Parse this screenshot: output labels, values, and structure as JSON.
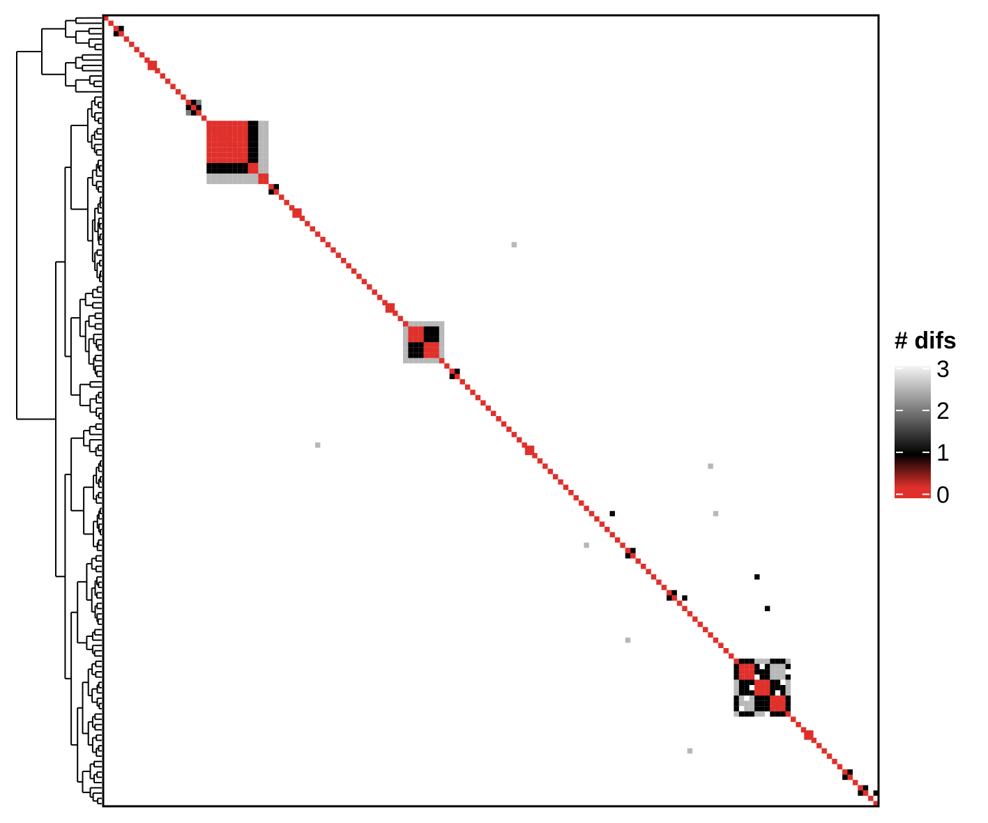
{
  "chart_data": {
    "type": "heatmap",
    "title": "",
    "xlabel": "",
    "ylabel": "",
    "n": 150,
    "diagonal_value": 0,
    "background_value": null,
    "legend": {
      "title": "# difs",
      "ticks": [
        {
          "label": "3",
          "value": 3
        },
        {
          "label": "2",
          "value": 2
        },
        {
          "label": "1",
          "value": 1
        },
        {
          "label": "0",
          "value": 0
        }
      ],
      "range": [
        0,
        3
      ],
      "colors": [
        "#e0302b",
        "#000000",
        "#f5f5f5"
      ]
    },
    "blocks": [
      {
        "start": 2,
        "end": 3,
        "pattern": [
          [
            0,
            1
          ],
          [
            1,
            0
          ]
        ]
      },
      {
        "start": 16,
        "end": 18,
        "pattern": [
          [
            0,
            1,
            2
          ],
          [
            1,
            0,
            1
          ],
          [
            2,
            1,
            0
          ]
        ]
      },
      {
        "start": 20,
        "end": 31,
        "pattern": "big1"
      },
      {
        "start": 32,
        "end": 33,
        "pattern": [
          [
            0,
            1
          ],
          [
            1,
            0
          ]
        ]
      },
      {
        "start": 58,
        "end": 65,
        "pattern": "big2"
      },
      {
        "start": 67,
        "end": 68,
        "pattern": [
          [
            0,
            1
          ],
          [
            1,
            0
          ]
        ]
      },
      {
        "start": 101,
        "end": 102,
        "pattern": [
          [
            0,
            1
          ],
          [
            1,
            0
          ]
        ]
      },
      {
        "start": 109,
        "end": 110,
        "pattern": [
          [
            0,
            1
          ],
          [
            1,
            0
          ]
        ]
      },
      {
        "start": 122,
        "end": 132,
        "pattern": "big3"
      },
      {
        "start": 143,
        "end": 144,
        "pattern": [
          [
            0,
            1
          ],
          [
            1,
            0
          ]
        ]
      },
      {
        "start": 146,
        "end": 147,
        "pattern": [
          [
            0,
            1
          ],
          [
            1,
            0
          ]
        ]
      }
    ],
    "enlarged_diagonal": [
      9,
      37,
      55,
      82,
      130,
      136
    ],
    "scattered_cells": [
      {
        "row": 43,
        "col": 79,
        "value": 2.5
      },
      {
        "row": 81,
        "col": 41,
        "value": 2.5
      },
      {
        "row": 85,
        "col": 117,
        "value": 2.5
      },
      {
        "row": 94,
        "col": 98,
        "value": 1
      },
      {
        "row": 94,
        "col": 118,
        "value": 2.5
      },
      {
        "row": 100,
        "col": 93,
        "value": 2.5
      },
      {
        "row": 106,
        "col": 126,
        "value": 1
      },
      {
        "row": 106,
        "col": 154,
        "value": 2.5
      },
      {
        "row": 110,
        "col": 112,
        "value": 1
      },
      {
        "row": 112,
        "col": 128,
        "value": 1
      },
      {
        "row": 118,
        "col": 101,
        "value": 2.5
      },
      {
        "row": 139,
        "col": 113,
        "value": 2.5
      },
      {
        "row": 147,
        "col": 149,
        "value": 1
      },
      {
        "row": 151,
        "col": 146,
        "value": 1
      }
    ],
    "dendrogram": {
      "side": "left",
      "leaves": 150
    }
  }
}
